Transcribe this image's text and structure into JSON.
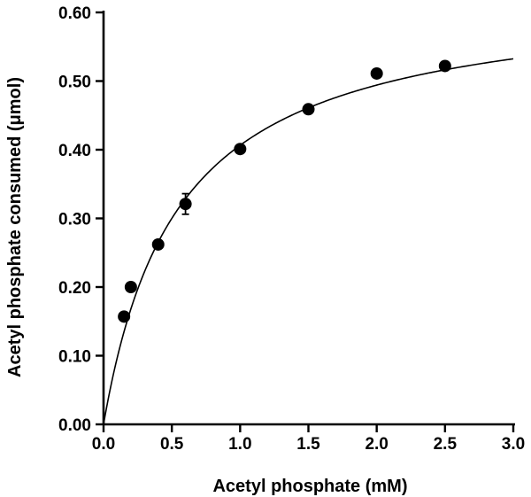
{
  "chart_data": {
    "type": "scatter",
    "xlabel": "Acetyl phosphate (mM)",
    "ylabel": "Acetyl phosphate consumed (μmol)",
    "xlim": [
      0,
      3.0
    ],
    "ylim": [
      0,
      0.6
    ],
    "x_ticks": [
      "0.0",
      "0.5",
      "1.0",
      "1.5",
      "2.0",
      "2.5",
      "3.0"
    ],
    "y_ticks": [
      "0.00",
      "0.10",
      "0.20",
      "0.30",
      "0.40",
      "0.50",
      "0.60"
    ],
    "grid": false,
    "legend": "none",
    "series": [
      {
        "points": [
          {
            "x": 0.15,
            "y": 0.157
          },
          {
            "x": 0.2,
            "y": 0.2
          },
          {
            "x": 0.4,
            "y": 0.262
          },
          {
            "x": 0.6,
            "y": 0.321,
            "err": 0.015
          },
          {
            "x": 1.0,
            "y": 0.401
          },
          {
            "x": 1.5,
            "y": 0.459
          },
          {
            "x": 2.0,
            "y": 0.511
          },
          {
            "x": 2.5,
            "y": 0.522
          }
        ]
      }
    ],
    "fit": {
      "model": "hyperbolic",
      "vmax": 0.63,
      "km": 0.55
    }
  }
}
